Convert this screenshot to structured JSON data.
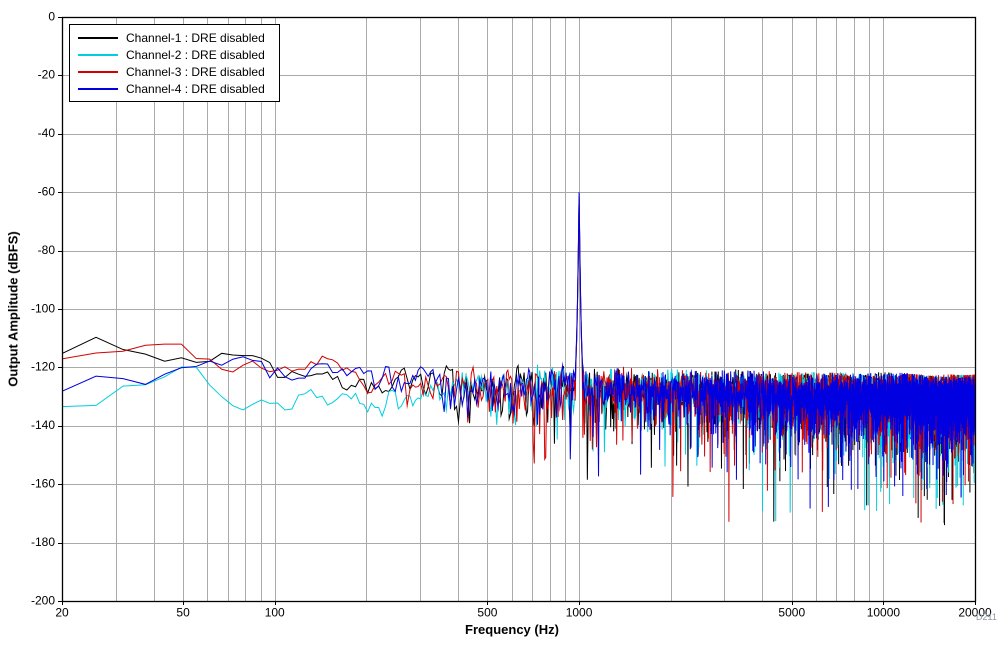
{
  "chart_data": {
    "type": "line",
    "title": "",
    "xlabel": "Frequency (Hz)",
    "ylabel": "Output Amplitude (dBFS)",
    "watermark": "D211",
    "x_scale": "log",
    "xlim": [
      20,
      20000
    ],
    "ylim": [
      -200,
      0
    ],
    "y_ticks": [
      0,
      -20,
      -40,
      -60,
      -80,
      -100,
      -120,
      -140,
      -160,
      -180,
      -200
    ],
    "x_labeled_ticks": [
      20,
      50,
      100,
      500,
      1000,
      5000,
      10000,
      20000
    ],
    "grid": true,
    "grid_color": "#aaaaaa",
    "axis_color": "#000000",
    "legend_position": "top-left",
    "bin_width_hz": 5.87,
    "noise_model": {
      "clamp_db": [
        -45,
        6
      ],
      "deep_dip_prob": 0.012
    },
    "series": [
      {
        "name": "Channel-1 : DRE disabled",
        "color": "#000000",
        "seed": 13,
        "tone_hz": 1000,
        "tone_dbfs": -61.5,
        "noise_top_envelope": [
          [
            20,
            -115.5
          ],
          [
            60,
            -115
          ],
          [
            90,
            -119
          ],
          [
            130,
            -122
          ],
          [
            200,
            -122
          ],
          [
            300,
            -124
          ],
          [
            500,
            -124
          ],
          [
            1000,
            -126
          ],
          [
            2000,
            -127
          ],
          [
            5000,
            -128
          ],
          [
            20000,
            -129
          ]
        ]
      },
      {
        "name": "Channel-2 : DRE disabled",
        "color": "#00CEE0",
        "seed": 7,
        "tone_hz": 1000,
        "tone_dbfs": -62,
        "noise_top_envelope": [
          [
            20,
            -130
          ],
          [
            35,
            -124
          ],
          [
            55,
            -123
          ],
          [
            80,
            -131
          ],
          [
            110,
            -126
          ],
          [
            160,
            -132
          ],
          [
            220,
            -128
          ],
          [
            300,
            -126
          ],
          [
            500,
            -124
          ],
          [
            1000,
            -126
          ],
          [
            2000,
            -127
          ],
          [
            5000,
            -128
          ],
          [
            20000,
            -129
          ]
        ]
      },
      {
        "name": "Channel-3 : DRE disabled",
        "color": "#D40000",
        "seed": 29,
        "tone_hz": 1000,
        "tone_dbfs": -62,
        "noise_top_envelope": [
          [
            20,
            -114.5
          ],
          [
            60,
            -116
          ],
          [
            100,
            -121
          ],
          [
            150,
            -120
          ],
          [
            250,
            -122
          ],
          [
            350,
            -124
          ],
          [
            500,
            -124
          ],
          [
            1000,
            -126
          ],
          [
            2000,
            -127
          ],
          [
            5000,
            -128
          ],
          [
            20000,
            -129
          ]
        ]
      },
      {
        "name": "Channel-4 : DRE disabled",
        "color": "#0000E0",
        "seed": 47,
        "tone_hz": 1000,
        "tone_dbfs": -60,
        "noise_top_envelope": [
          [
            20,
            -130
          ],
          [
            40,
            -120
          ],
          [
            70,
            -118
          ],
          [
            110,
            -121
          ],
          [
            160,
            -118
          ],
          [
            250,
            -123
          ],
          [
            400,
            -124
          ],
          [
            600,
            -125
          ],
          [
            1000,
            -126
          ],
          [
            2000,
            -127
          ],
          [
            5000,
            -128
          ],
          [
            20000,
            -129
          ]
        ]
      }
    ]
  }
}
